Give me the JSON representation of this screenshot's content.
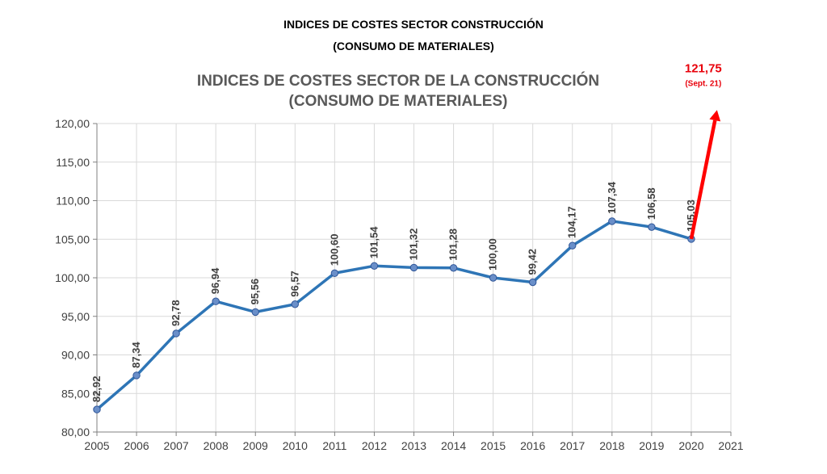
{
  "document": {
    "title_line1": "INDICES DE COSTES SECTOR CONSTRUCCIÓN",
    "title_line2": "(CONSUMO DE MATERIALES)"
  },
  "chart_data": {
    "type": "line",
    "title_line1": "INDICES DE COSTES SECTOR DE LA CONSTRUCCIÓN",
    "title_line2": "(CONSUMO DE MATERIALES)",
    "x": [
      2005,
      2006,
      2007,
      2008,
      2009,
      2010,
      2011,
      2012,
      2013,
      2014,
      2015,
      2016,
      2017,
      2018,
      2019,
      2020
    ],
    "x_ticks": [
      "2005",
      "2006",
      "2007",
      "2008",
      "2009",
      "2010",
      "2011",
      "2012",
      "2013",
      "2014",
      "2015",
      "2016",
      "2017",
      "2018",
      "2019",
      "2020",
      "2021"
    ],
    "xlim": [
      2005,
      2021
    ],
    "values": [
      82.92,
      87.34,
      92.78,
      96.94,
      95.56,
      96.57,
      100.6,
      101.54,
      101.32,
      101.28,
      100.0,
      99.42,
      104.17,
      107.34,
      106.58,
      105.03
    ],
    "data_labels": [
      "82,92",
      "87,34",
      "92,78",
      "96,94",
      "95,56",
      "96,57",
      "100,60",
      "101,54",
      "101,32",
      "101,28",
      "100,00",
      "99,42",
      "104,17",
      "107,34",
      "106,58",
      "105,03"
    ],
    "ylim": [
      80,
      120
    ],
    "y_ticks": [
      "80,00",
      "85,00",
      "90,00",
      "95,00",
      "100,00",
      "105,00",
      "110,00",
      "115,00",
      "120,00"
    ],
    "grid": true,
    "colors": {
      "line": "#2e75b6",
      "marker_fill": "#6a8fc9",
      "marker_stroke": "#2f5597",
      "arrow": "#ff0000",
      "annotation": "#e8000b"
    },
    "annotation": {
      "value_label": "121,75",
      "sub_label": "(Sept. 21)",
      "from": {
        "x": 2020,
        "y": 105.03
      },
      "to": {
        "x": 2020.65,
        "y": 121.75
      }
    }
  }
}
